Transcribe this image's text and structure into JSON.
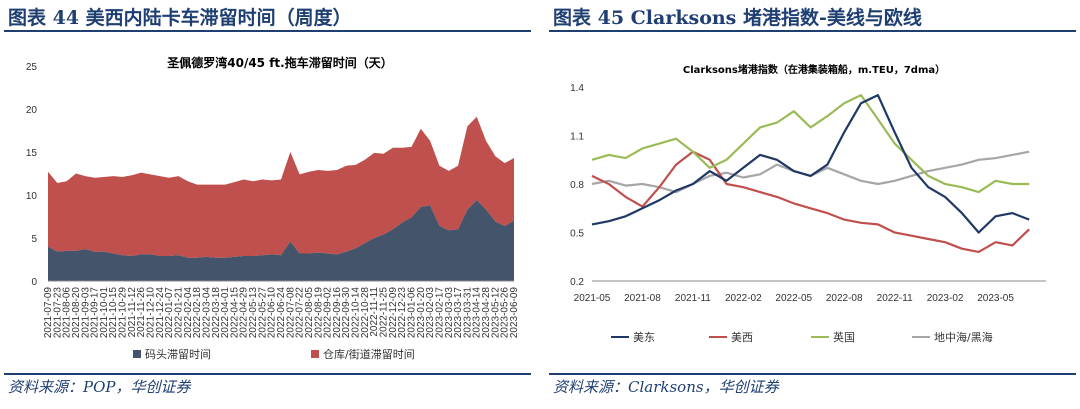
{
  "figures": [
    {
      "title": "图表 44  美西内陆卡车滞留时间（周度）",
      "source": "资料来源：POP，华创证券"
    },
    {
      "title": "图表 45  Clarksons 堵港指数-美线与欧线",
      "source": "资料来源：Clarksons，华创证券"
    }
  ],
  "colors": {
    "header": "#1f3f73",
    "navy": "#44546a",
    "red": "#c0504d",
    "green": "#9bbb59",
    "gray": "#a6a6a6",
    "darkblue": "#1f3864"
  },
  "chart_data": [
    {
      "type": "area",
      "stacked": true,
      "title": "圣佩德罗湾40/45 ft.拖车滞留时间（天）",
      "ylim": [
        0,
        25
      ],
      "yticks": [
        "0",
        "5",
        "10",
        "15",
        "20",
        "25"
      ],
      "grid": false,
      "legend_position": "bottom",
      "x": [
        "2021-07-09",
        "2021-07-23",
        "2021-08-06",
        "2021-08-20",
        "2021-09-03",
        "2021-09-17",
        "2021-10-01",
        "2021-10-15",
        "2021-10-29",
        "2021-11-12",
        "2021-11-26",
        "2021-12-10",
        "2021-12-24",
        "2022-01-07",
        "2022-01-21",
        "2022-02-04",
        "2022-02-18",
        "2022-03-04",
        "2022-03-18",
        "2022-04-01",
        "2022-04-15",
        "2022-04-29",
        "2022-05-13",
        "2022-05-27",
        "2022-06-10",
        "2022-06-24",
        "2022-07-08",
        "2022-07-22",
        "2022-08-05",
        "2022-08-19",
        "2022-09-02",
        "2022-09-16",
        "2022-09-30",
        "2022-10-14",
        "2022-10-28",
        "2022-11-11",
        "2022-11-25",
        "2022-12-09",
        "2022-12-23",
        "2023-01-06",
        "2023-01-20",
        "2023-02-03",
        "2023-02-17",
        "2023-03-03",
        "2023-03-17",
        "2023-03-31",
        "2023-04-14",
        "2023-04-28",
        "2023-05-12",
        "2023-05-26",
        "2023-06-09"
      ],
      "series": [
        {
          "name": "码头滞留时间",
          "values": [
            4.0,
            3.4,
            3.5,
            3.5,
            3.7,
            3.4,
            3.4,
            3.2,
            3.0,
            2.9,
            3.1,
            3.1,
            2.9,
            2.9,
            3.0,
            2.7,
            2.7,
            2.8,
            2.7,
            2.7,
            2.8,
            2.9,
            2.9,
            3.0,
            3.1,
            3.0,
            4.6,
            3.2,
            3.2,
            3.3,
            3.2,
            3.1,
            3.4,
            3.8,
            4.4,
            5.0,
            5.4,
            6.0,
            6.8,
            7.4,
            8.6,
            8.8,
            6.4,
            5.9,
            6.0,
            8.3,
            9.4,
            8.3,
            6.9,
            6.4,
            7.0
          ]
        },
        {
          "name": "仓库/街道滞留时间",
          "values": [
            8.7,
            8.0,
            8.1,
            9.0,
            8.5,
            8.6,
            8.7,
            9.0,
            9.1,
            9.4,
            9.5,
            9.3,
            9.3,
            9.1,
            9.2,
            8.9,
            8.5,
            8.4,
            8.5,
            8.5,
            8.7,
            8.9,
            8.7,
            8.8,
            8.6,
            8.8,
            10.4,
            9.2,
            9.5,
            9.6,
            9.6,
            9.8,
            10.0,
            9.7,
            9.7,
            9.9,
            9.4,
            9.5,
            8.7,
            8.2,
            9.1,
            7.5,
            7.0,
            6.9,
            7.4,
            9.7,
            9.7,
            8.0,
            7.6,
            7.3,
            7.3
          ]
        }
      ]
    },
    {
      "type": "line",
      "title": "Clarksons堵港指数（在港集装箱船，m.TEU，7dma）",
      "ylim": [
        0.2,
        1.4
      ],
      "yticks": [
        "0.2",
        "0.5",
        "0.8",
        "1.1",
        "1.4"
      ],
      "xticks": [
        "2021-05",
        "2021-08",
        "2021-11",
        "2022-02",
        "2022-05",
        "2022-08",
        "2022-11",
        "2023-02",
        "2023-05"
      ],
      "grid": false,
      "legend_position": "bottom",
      "x": [
        "2021-05",
        "2021-06",
        "2021-07",
        "2021-08",
        "2021-09",
        "2021-10",
        "2021-11",
        "2021-12",
        "2022-01",
        "2022-02",
        "2022-03",
        "2022-04",
        "2022-05",
        "2022-06",
        "2022-07",
        "2022-08",
        "2022-09",
        "2022-10",
        "2022-11",
        "2022-12",
        "2023-01",
        "2023-02",
        "2023-03",
        "2023-04",
        "2023-05",
        "2023-06",
        "2023-07"
      ],
      "series": [
        {
          "name": "美东",
          "values": [
            0.55,
            0.57,
            0.6,
            0.65,
            0.7,
            0.76,
            0.8,
            0.88,
            0.82,
            0.9,
            0.98,
            0.95,
            0.88,
            0.85,
            0.92,
            1.12,
            1.3,
            1.35,
            1.12,
            0.9,
            0.78,
            0.72,
            0.62,
            0.5,
            0.6,
            0.62,
            0.58
          ]
        },
        {
          "name": "美西",
          "values": [
            0.85,
            0.8,
            0.72,
            0.66,
            0.78,
            0.92,
            1.0,
            0.95,
            0.8,
            0.78,
            0.75,
            0.72,
            0.68,
            0.65,
            0.62,
            0.58,
            0.56,
            0.55,
            0.5,
            0.48,
            0.46,
            0.44,
            0.4,
            0.38,
            0.44,
            0.42,
            0.52
          ]
        },
        {
          "name": "英国",
          "values": [
            0.95,
            0.98,
            0.96,
            1.02,
            1.05,
            1.08,
            1.0,
            0.9,
            0.95,
            1.05,
            1.15,
            1.18,
            1.25,
            1.15,
            1.22,
            1.3,
            1.35,
            1.2,
            1.05,
            0.95,
            0.85,
            0.8,
            0.78,
            0.75,
            0.82,
            0.8,
            0.8
          ]
        },
        {
          "name": "地中海/黑海",
          "values": [
            0.8,
            0.82,
            0.79,
            0.8,
            0.78,
            0.75,
            0.8,
            0.85,
            0.87,
            0.84,
            0.86,
            0.92,
            0.88,
            0.85,
            0.9,
            0.86,
            0.82,
            0.8,
            0.82,
            0.85,
            0.88,
            0.9,
            0.92,
            0.95,
            0.96,
            0.98,
            1.0
          ]
        }
      ]
    }
  ]
}
